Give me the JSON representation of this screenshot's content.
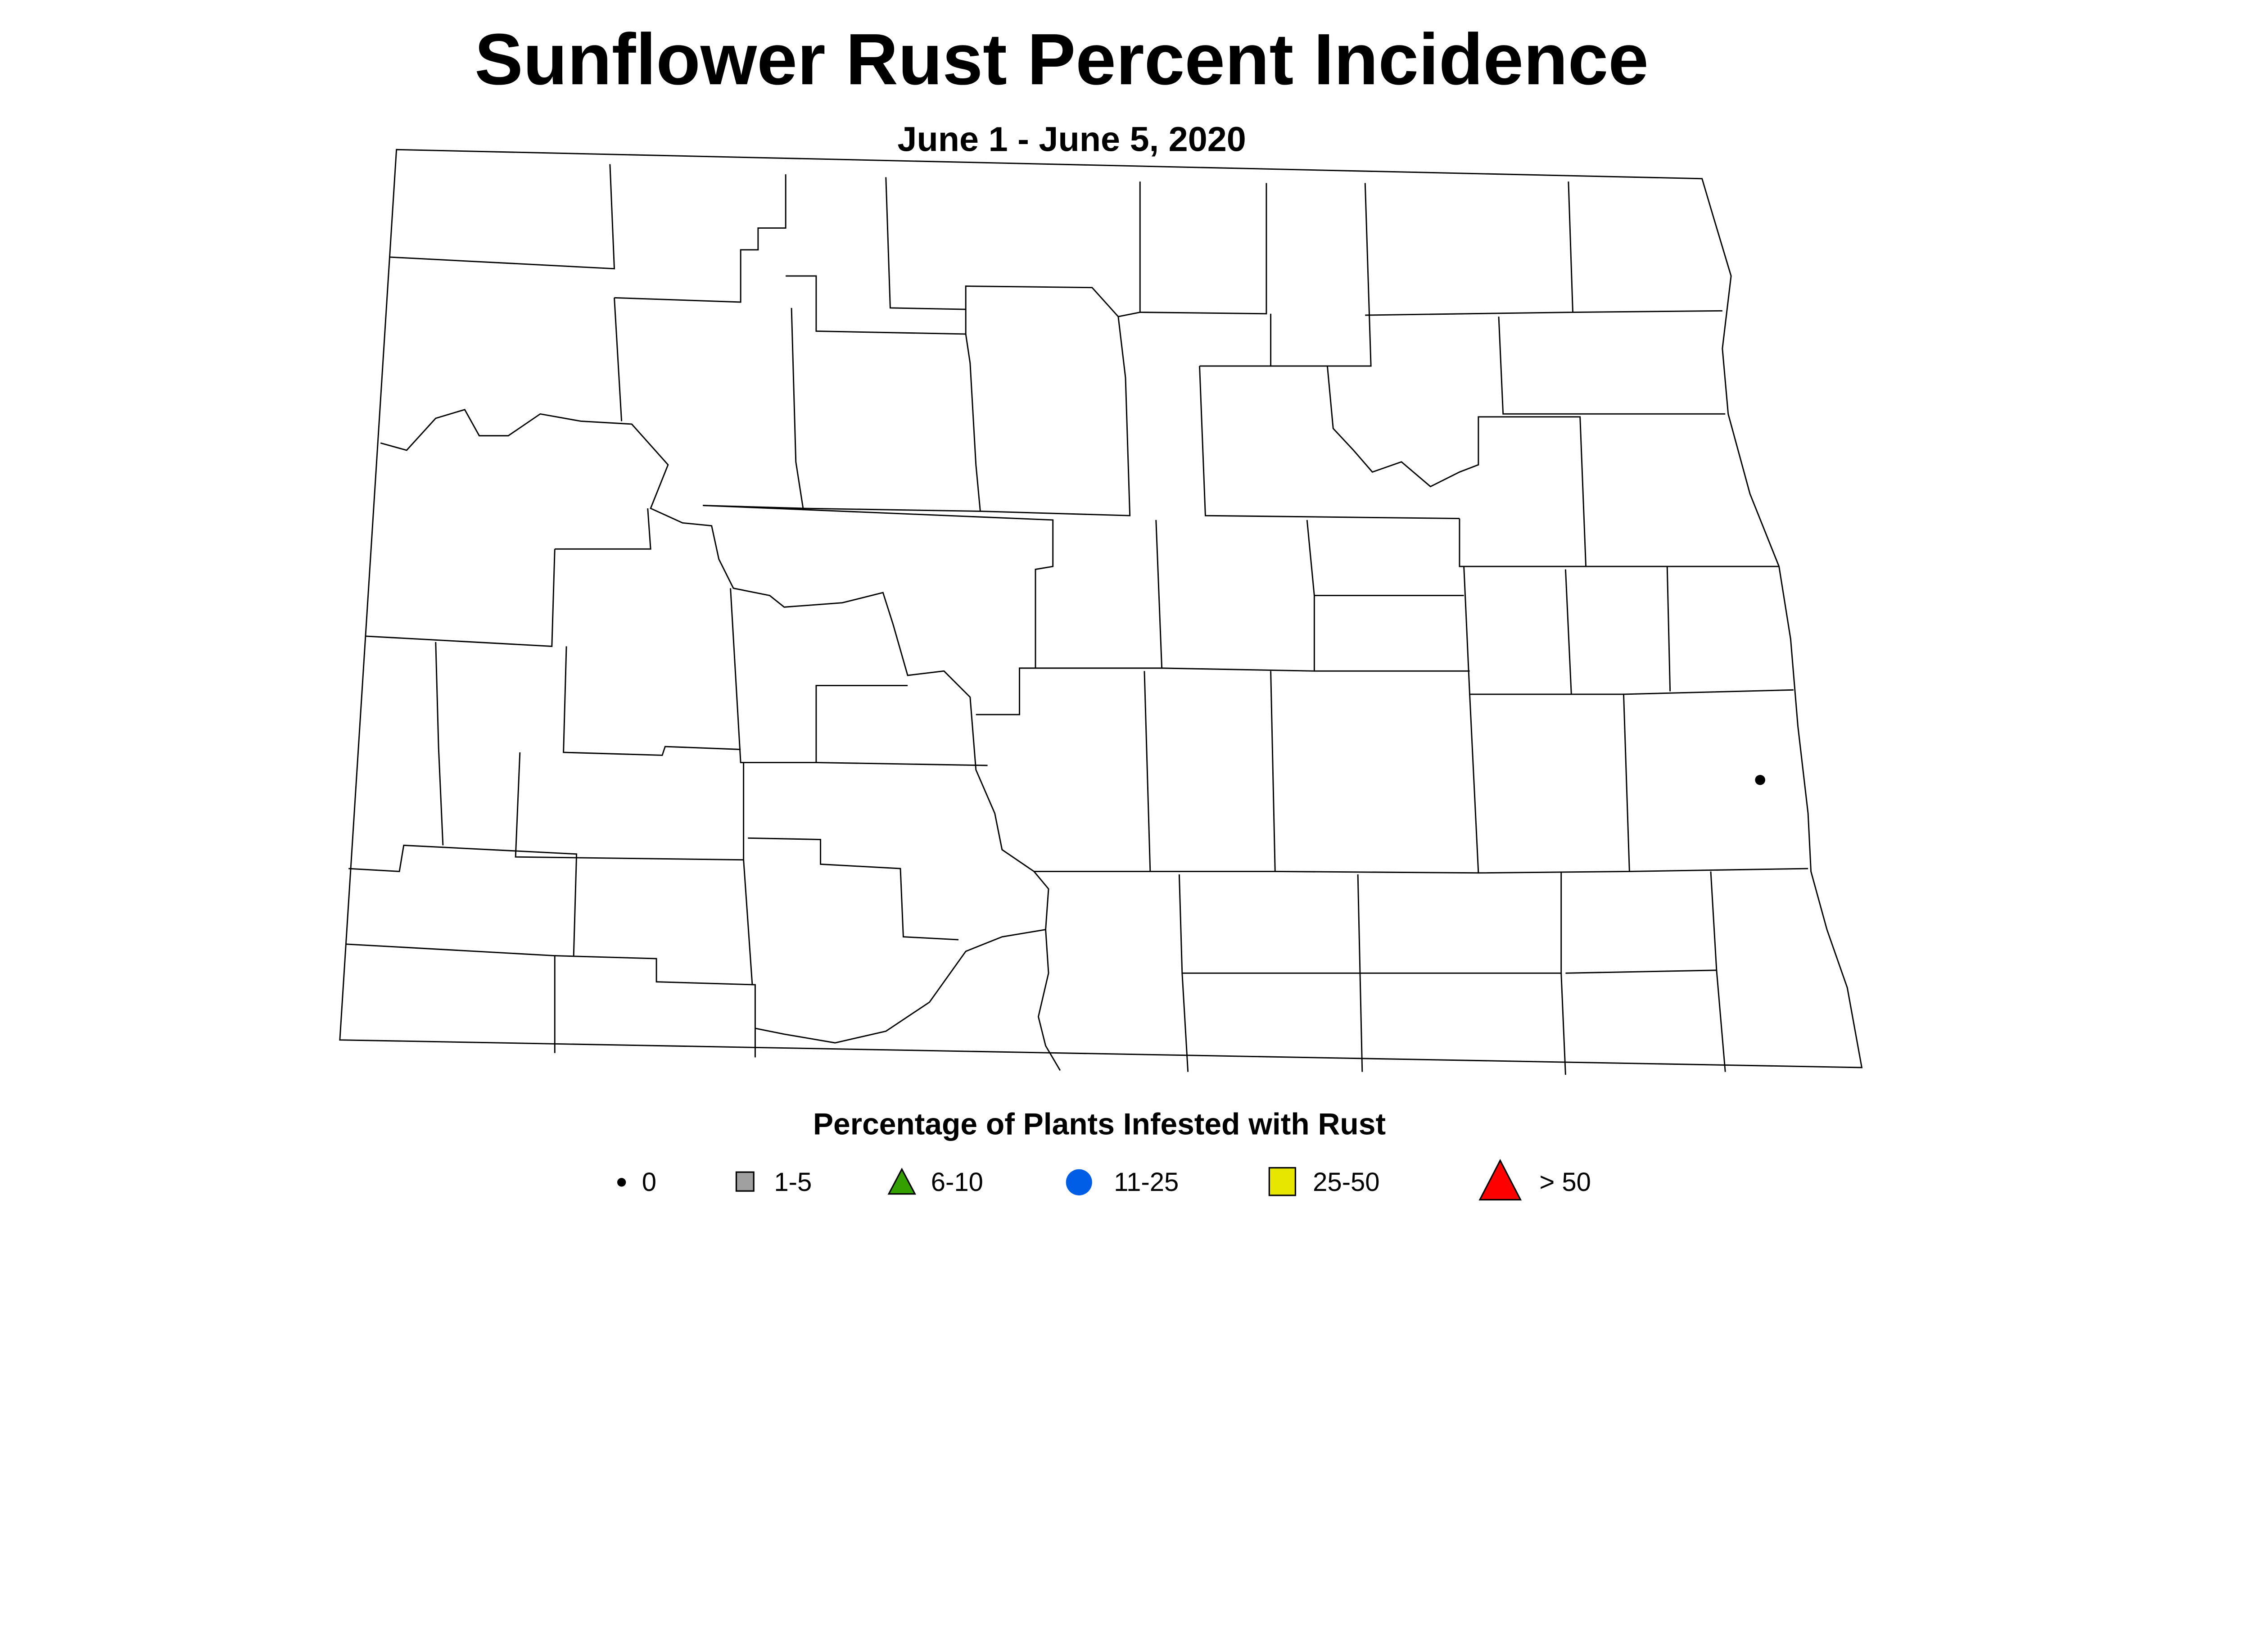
{
  "title": "Sunflower Rust Percent Incidence",
  "subtitle": "June 1 - June 5, 2020",
  "legend": {
    "title": "Percentage of Plants Infested with Rust",
    "items": [
      {
        "label": "0",
        "symbol": "dot",
        "color": "#000000"
      },
      {
        "label": "1-5",
        "symbol": "square",
        "color": "#a0a0a0"
      },
      {
        "label": "6-10",
        "symbol": "triangle",
        "color": "#33a000"
      },
      {
        "label": "11-25",
        "symbol": "circle",
        "color": "#005ee6"
      },
      {
        "label": "25-50",
        "symbol": "square",
        "color": "#e6e600"
      },
      {
        "label": "> 50",
        "symbol": "triangle",
        "color": "#ff0000"
      }
    ]
  },
  "chart_data": {
    "type": "scatter",
    "map_region": "North Dakota counties",
    "observations": [
      {
        "location": "southeastern Cass County area",
        "category": "0"
      }
    ]
  }
}
